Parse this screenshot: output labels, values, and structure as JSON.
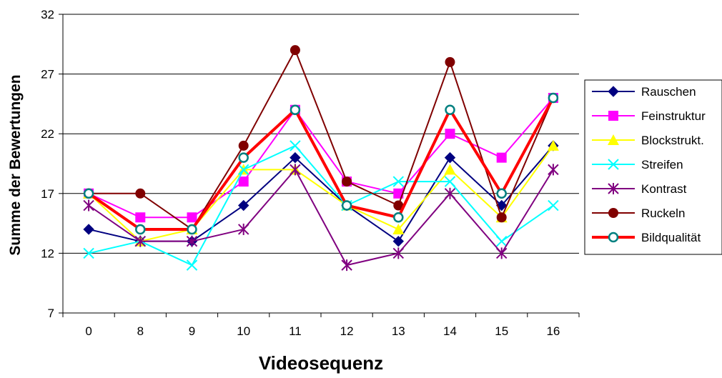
{
  "chart_data": {
    "type": "line",
    "title": "",
    "xlabel": "Videosequenz",
    "ylabel": "Summe der Bewertungen",
    "categories": [
      "0",
      "8",
      "9",
      "10",
      "11",
      "12",
      "13",
      "14",
      "15",
      "16"
    ],
    "ylim": [
      7,
      32
    ],
    "yticks": [
      7,
      12,
      17,
      22,
      27,
      32
    ],
    "grid": true,
    "legend_position": "right",
    "series": [
      {
        "name": "Rauschen",
        "color": "#000080",
        "marker": "diamond",
        "values": [
          14,
          13,
          13,
          16,
          20,
          16,
          13,
          20,
          16,
          21
        ]
      },
      {
        "name": "Feinstruktur",
        "color": "#FF00FF",
        "marker": "square",
        "values": [
          17,
          15,
          15,
          18,
          24,
          18,
          17,
          22,
          20,
          25
        ]
      },
      {
        "name": "Blockstrukt.",
        "color": "#FFFF00",
        "marker": "triangle",
        "values": [
          17,
          13,
          14,
          19,
          19,
          16,
          14,
          19,
          15,
          21
        ]
      },
      {
        "name": "Streifen",
        "color": "#00FFFF",
        "marker": "x",
        "values": [
          12,
          13,
          11,
          19,
          21,
          16,
          18,
          18,
          13,
          16
        ]
      },
      {
        "name": "Kontrast",
        "color": "#800080",
        "marker": "star",
        "values": [
          16,
          13,
          13,
          14,
          19,
          11,
          12,
          17,
          12,
          19
        ]
      },
      {
        "name": "Ruckeln",
        "color": "#800000",
        "marker": "circle",
        "values": [
          17,
          17,
          14,
          21,
          29,
          18,
          16,
          28,
          15,
          25
        ]
      },
      {
        "name": "Bildqualität",
        "color": "#FF0000",
        "marker": "ring",
        "ring_color": "#008080",
        "values": [
          17,
          14,
          14,
          20,
          24,
          16,
          15,
          24,
          17,
          25
        ]
      }
    ]
  }
}
